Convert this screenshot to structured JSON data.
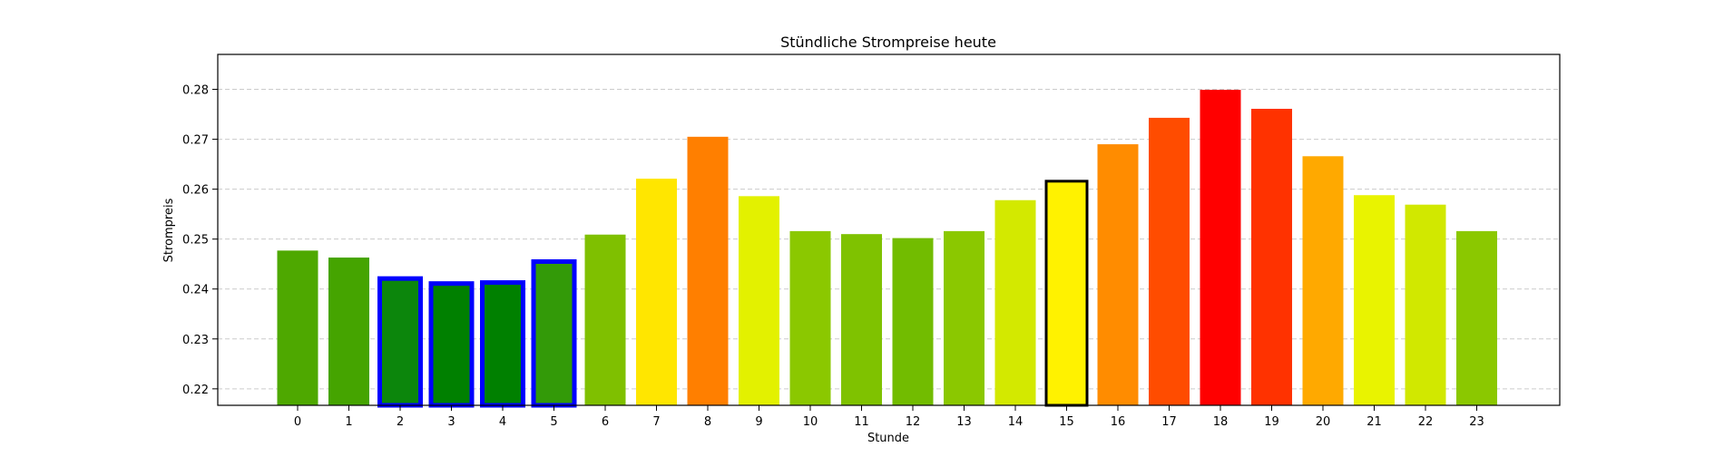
{
  "chart_data": {
    "type": "bar",
    "title": "Stündliche Strompreise heute",
    "xlabel": "Stunde",
    "ylabel": "Strompreis",
    "ylim": [
      0.2167,
      0.287
    ],
    "grid": true,
    "categories": [
      "0",
      "1",
      "2",
      "3",
      "4",
      "5",
      "6",
      "7",
      "8",
      "9",
      "10",
      "11",
      "12",
      "13",
      "14",
      "15",
      "16",
      "17",
      "18",
      "19",
      "20",
      "21",
      "22",
      "23"
    ],
    "values": [
      0.2477,
      0.2463,
      0.2421,
      0.2411,
      0.2413,
      0.2455,
      0.2509,
      0.2621,
      0.2705,
      0.2586,
      0.2516,
      0.251,
      0.2502,
      0.2516,
      0.2578,
      0.2616,
      0.269,
      0.2743,
      0.2799,
      0.2761,
      0.2666,
      0.2588,
      0.2569,
      0.2516
    ],
    "colors": [
      "#4ea800",
      "#45a400",
      "#0c860c",
      "#008000",
      "#008000",
      "#339a08",
      "#7fc000",
      "#ffe600",
      "#ff7f00",
      "#e3f100",
      "#8bc800",
      "#7fc200",
      "#72bc00",
      "#8bc800",
      "#d3e900",
      "#fff200",
      "#ff8c00",
      "#ff4c00",
      "#ff0000",
      "#ff3200",
      "#ffa900",
      "#e9f300",
      "#d1e800",
      "#8bc800"
    ],
    "cheapest_highlight_hours": [
      "2",
      "3",
      "4",
      "5"
    ],
    "highlight_color": "#0000ff",
    "current_hour": "15",
    "current_hour_outline_color": "#000000",
    "yticks": [
      "0.22",
      "0.23",
      "0.24",
      "0.25",
      "0.26",
      "0.27",
      "0.28"
    ]
  }
}
